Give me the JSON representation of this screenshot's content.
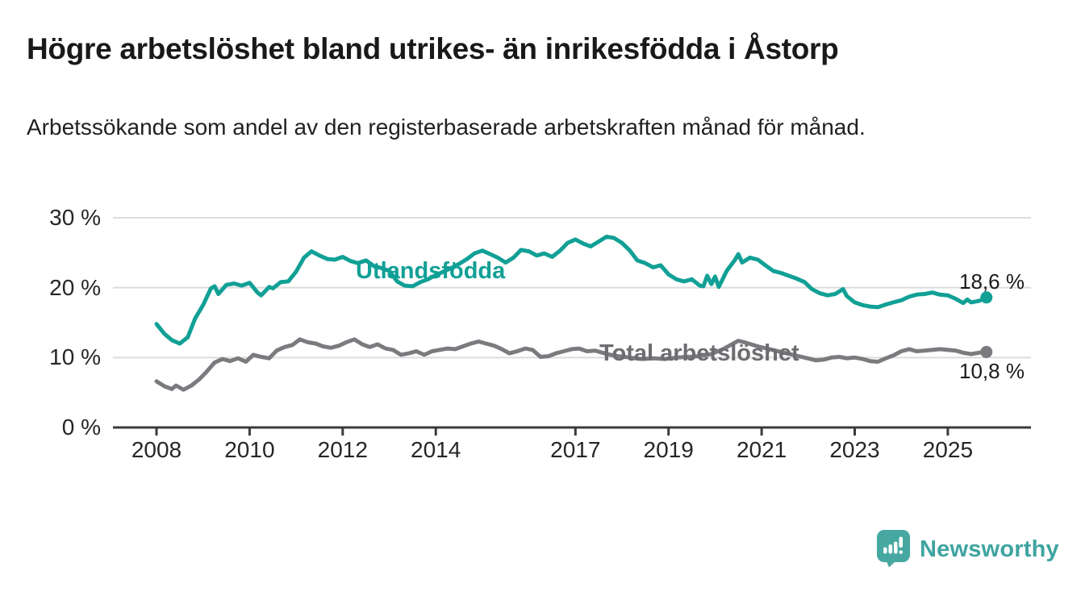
{
  "header": {
    "title": "Högre arbetslöshet bland utrikes- än inrikesfödda i Åstorp",
    "subtitle": "Arbetssökande som andel av den registerbaserade arbetskraften månad för månad."
  },
  "chart_data": {
    "type": "line",
    "title": "Högre arbetslöshet bland utrikes- än inrikesfödda i Åstorp",
    "xlabel": "",
    "ylabel": "",
    "x_unit": "year (monthly data)",
    "xlim": [
      2007.1,
      2026.8
    ],
    "ylim": [
      0,
      30
    ],
    "grid": "horizontal",
    "legend_position": "inline-labels",
    "y_ticks": [
      {
        "value": 30,
        "label": "30 %"
      },
      {
        "value": 20,
        "label": "20 %"
      },
      {
        "value": 10,
        "label": "10 %"
      },
      {
        "value": 0,
        "label": "0 %"
      }
    ],
    "x_ticks": [
      {
        "value": 2008,
        "label": "2008"
      },
      {
        "value": 2010,
        "label": "2010"
      },
      {
        "value": 2012,
        "label": "2012"
      },
      {
        "value": 2014,
        "label": "2014"
      },
      {
        "value": 2017,
        "label": "2017"
      },
      {
        "value": 2019,
        "label": "2019"
      },
      {
        "value": 2021,
        "label": "2021"
      },
      {
        "value": 2023,
        "label": "2023"
      },
      {
        "value": 2025,
        "label": "2025"
      }
    ],
    "colors": {
      "grid": "#dcdcdc",
      "axis": "#3b3b3b"
    },
    "series": [
      {
        "name": "Utlandsfödda",
        "color": "#11a096",
        "end_label": "18,6 %",
        "end_value": 18.6,
        "points": [
          [
            2008.0,
            14.8
          ],
          [
            2008.17,
            13.4
          ],
          [
            2008.33,
            12.5
          ],
          [
            2008.5,
            12.0
          ],
          [
            2008.67,
            12.9
          ],
          [
            2008.83,
            15.6
          ],
          [
            2009.0,
            17.5
          ],
          [
            2009.17,
            19.9
          ],
          [
            2009.25,
            20.2
          ],
          [
            2009.33,
            19.1
          ],
          [
            2009.5,
            20.4
          ],
          [
            2009.67,
            20.6
          ],
          [
            2009.83,
            20.3
          ],
          [
            2010.0,
            20.7
          ],
          [
            2010.17,
            19.3
          ],
          [
            2010.25,
            18.9
          ],
          [
            2010.42,
            20.1
          ],
          [
            2010.5,
            19.9
          ],
          [
            2010.67,
            20.8
          ],
          [
            2010.83,
            20.9
          ],
          [
            2011.0,
            22.3
          ],
          [
            2011.17,
            24.3
          ],
          [
            2011.33,
            25.2
          ],
          [
            2011.5,
            24.6
          ],
          [
            2011.67,
            24.1
          ],
          [
            2011.83,
            24.0
          ],
          [
            2012.0,
            24.4
          ],
          [
            2012.17,
            23.8
          ],
          [
            2012.33,
            23.5
          ],
          [
            2012.5,
            23.9
          ],
          [
            2012.67,
            23.1
          ],
          [
            2012.83,
            22.8
          ],
          [
            2013.0,
            22.4
          ],
          [
            2013.17,
            20.9
          ],
          [
            2013.33,
            20.3
          ],
          [
            2013.5,
            20.2
          ],
          [
            2013.67,
            20.8
          ],
          [
            2013.83,
            21.2
          ],
          [
            2014.0,
            21.8
          ],
          [
            2014.17,
            22.3
          ],
          [
            2014.33,
            22.8
          ],
          [
            2014.5,
            23.4
          ],
          [
            2014.67,
            24.1
          ],
          [
            2014.83,
            24.9
          ],
          [
            2015.0,
            25.3
          ],
          [
            2015.17,
            24.8
          ],
          [
            2015.33,
            24.3
          ],
          [
            2015.5,
            23.6
          ],
          [
            2015.67,
            24.3
          ],
          [
            2015.83,
            25.4
          ],
          [
            2016.0,
            25.2
          ],
          [
            2016.17,
            24.6
          ],
          [
            2016.33,
            24.9
          ],
          [
            2016.5,
            24.4
          ],
          [
            2016.67,
            25.3
          ],
          [
            2016.83,
            26.4
          ],
          [
            2017.0,
            26.9
          ],
          [
            2017.17,
            26.3
          ],
          [
            2017.33,
            25.9
          ],
          [
            2017.5,
            26.6
          ],
          [
            2017.67,
            27.3
          ],
          [
            2017.83,
            27.1
          ],
          [
            2018.0,
            26.4
          ],
          [
            2018.17,
            25.3
          ],
          [
            2018.33,
            23.9
          ],
          [
            2018.5,
            23.5
          ],
          [
            2018.67,
            22.9
          ],
          [
            2018.83,
            23.2
          ],
          [
            2019.0,
            21.9
          ],
          [
            2019.17,
            21.2
          ],
          [
            2019.33,
            20.9
          ],
          [
            2019.5,
            21.2
          ],
          [
            2019.67,
            20.3
          ],
          [
            2019.75,
            20.2
          ],
          [
            2019.83,
            21.7
          ],
          [
            2019.92,
            20.5
          ],
          [
            2020.0,
            21.6
          ],
          [
            2020.08,
            20.1
          ],
          [
            2020.25,
            22.4
          ],
          [
            2020.42,
            23.9
          ],
          [
            2020.5,
            24.8
          ],
          [
            2020.58,
            23.6
          ],
          [
            2020.75,
            24.3
          ],
          [
            2020.92,
            24.0
          ],
          [
            2021.08,
            23.2
          ],
          [
            2021.25,
            22.4
          ],
          [
            2021.42,
            22.1
          ],
          [
            2021.58,
            21.7
          ],
          [
            2021.75,
            21.3
          ],
          [
            2021.92,
            20.8
          ],
          [
            2022.08,
            19.8
          ],
          [
            2022.25,
            19.2
          ],
          [
            2022.42,
            18.9
          ],
          [
            2022.58,
            19.1
          ],
          [
            2022.75,
            19.8
          ],
          [
            2022.83,
            18.8
          ],
          [
            2023.0,
            17.9
          ],
          [
            2023.17,
            17.5
          ],
          [
            2023.33,
            17.3
          ],
          [
            2023.5,
            17.2
          ],
          [
            2023.67,
            17.6
          ],
          [
            2023.83,
            17.9
          ],
          [
            2024.0,
            18.2
          ],
          [
            2024.17,
            18.7
          ],
          [
            2024.33,
            19.0
          ],
          [
            2024.5,
            19.1
          ],
          [
            2024.67,
            19.3
          ],
          [
            2024.83,
            19.0
          ],
          [
            2025.0,
            18.9
          ],
          [
            2025.17,
            18.4
          ],
          [
            2025.33,
            17.8
          ],
          [
            2025.42,
            18.3
          ],
          [
            2025.5,
            17.9
          ],
          [
            2025.67,
            18.1
          ],
          [
            2025.83,
            18.6
          ]
        ]
      },
      {
        "name": "Total arbetslöshet",
        "color": "#7b7b7f",
        "end_label": "10,8 %",
        "end_value": 10.8,
        "points": [
          [
            2008.0,
            6.6
          ],
          [
            2008.17,
            5.9
          ],
          [
            2008.33,
            5.5
          ],
          [
            2008.42,
            6.0
          ],
          [
            2008.58,
            5.4
          ],
          [
            2008.75,
            6.0
          ],
          [
            2008.92,
            6.9
          ],
          [
            2009.08,
            8.0
          ],
          [
            2009.25,
            9.3
          ],
          [
            2009.42,
            9.8
          ],
          [
            2009.58,
            9.5
          ],
          [
            2009.75,
            9.9
          ],
          [
            2009.92,
            9.4
          ],
          [
            2010.08,
            10.4
          ],
          [
            2010.25,
            10.1
          ],
          [
            2010.42,
            9.9
          ],
          [
            2010.58,
            11.0
          ],
          [
            2010.75,
            11.5
          ],
          [
            2010.92,
            11.8
          ],
          [
            2011.08,
            12.6
          ],
          [
            2011.25,
            12.2
          ],
          [
            2011.42,
            12.0
          ],
          [
            2011.58,
            11.6
          ],
          [
            2011.75,
            11.4
          ],
          [
            2011.92,
            11.7
          ],
          [
            2012.08,
            12.2
          ],
          [
            2012.25,
            12.6
          ],
          [
            2012.42,
            11.9
          ],
          [
            2012.58,
            11.5
          ],
          [
            2012.75,
            11.9
          ],
          [
            2012.92,
            11.3
          ],
          [
            2013.08,
            11.1
          ],
          [
            2013.25,
            10.4
          ],
          [
            2013.42,
            10.6
          ],
          [
            2013.58,
            10.9
          ],
          [
            2013.75,
            10.4
          ],
          [
            2013.92,
            10.9
          ],
          [
            2014.08,
            11.1
          ],
          [
            2014.25,
            11.3
          ],
          [
            2014.42,
            11.2
          ],
          [
            2014.58,
            11.6
          ],
          [
            2014.75,
            12.0
          ],
          [
            2014.92,
            12.3
          ],
          [
            2015.08,
            12.0
          ],
          [
            2015.25,
            11.7
          ],
          [
            2015.42,
            11.2
          ],
          [
            2015.58,
            10.6
          ],
          [
            2015.75,
            10.9
          ],
          [
            2015.92,
            11.3
          ],
          [
            2016.08,
            11.1
          ],
          [
            2016.25,
            10.1
          ],
          [
            2016.42,
            10.2
          ],
          [
            2016.58,
            10.6
          ],
          [
            2016.75,
            10.9
          ],
          [
            2016.92,
            11.2
          ],
          [
            2017.08,
            11.3
          ],
          [
            2017.25,
            10.9
          ],
          [
            2017.42,
            11.0
          ],
          [
            2017.58,
            10.7
          ],
          [
            2017.75,
            10.4
          ],
          [
            2017.92,
            10.2
          ],
          [
            2018.17,
            10.0
          ],
          [
            2018.42,
            9.8
          ],
          [
            2018.67,
            9.9
          ],
          [
            2018.92,
            9.8
          ],
          [
            2019.17,
            10.0
          ],
          [
            2019.42,
            10.1
          ],
          [
            2019.67,
            10.2
          ],
          [
            2019.92,
            10.5
          ],
          [
            2020.17,
            11.2
          ],
          [
            2020.42,
            12.1
          ],
          [
            2020.5,
            12.4
          ],
          [
            2020.67,
            12.1
          ],
          [
            2020.92,
            11.6
          ],
          [
            2021.17,
            11.2
          ],
          [
            2021.42,
            10.8
          ],
          [
            2021.67,
            10.4
          ],
          [
            2021.92,
            10.0
          ],
          [
            2022.17,
            9.6
          ],
          [
            2022.33,
            9.7
          ],
          [
            2022.5,
            10.0
          ],
          [
            2022.67,
            10.1
          ],
          [
            2022.83,
            9.9
          ],
          [
            2023.0,
            10.0
          ],
          [
            2023.17,
            9.8
          ],
          [
            2023.33,
            9.5
          ],
          [
            2023.5,
            9.4
          ],
          [
            2023.67,
            9.9
          ],
          [
            2023.83,
            10.3
          ],
          [
            2024.0,
            10.9
          ],
          [
            2024.17,
            11.2
          ],
          [
            2024.33,
            10.9
          ],
          [
            2024.5,
            11.0
          ],
          [
            2024.67,
            11.1
          ],
          [
            2024.83,
            11.2
          ],
          [
            2025.0,
            11.1
          ],
          [
            2025.17,
            11.0
          ],
          [
            2025.33,
            10.7
          ],
          [
            2025.5,
            10.5
          ],
          [
            2025.67,
            10.7
          ],
          [
            2025.83,
            10.8
          ]
        ]
      }
    ]
  },
  "branding": {
    "logo_text": "Newsworthy",
    "logo_icon": "bar-chart-speech-bubble-icon",
    "logo_color": "#47a8a1",
    "logo_text_color": "#3fa4a0"
  }
}
